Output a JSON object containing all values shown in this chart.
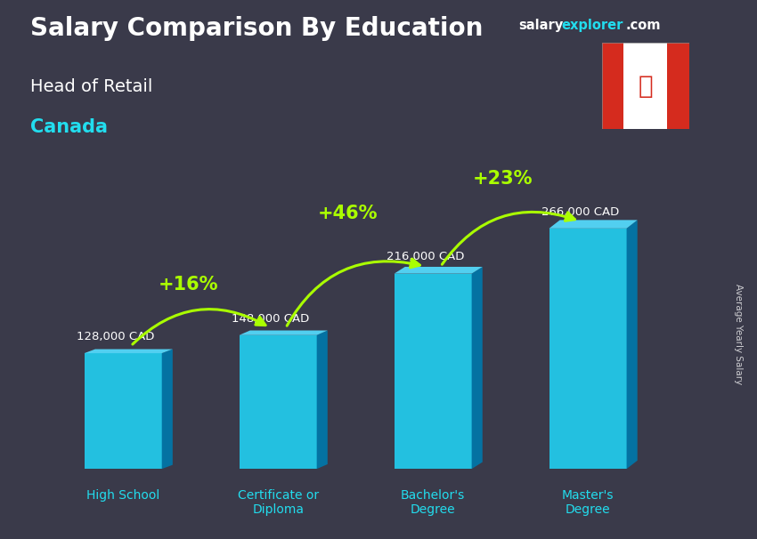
{
  "title_main": "Salary Comparison By Education",
  "title_sub": "Head of Retail",
  "title_country": "Canada",
  "ylabel": "Average Yearly Salary",
  "categories": [
    "High School",
    "Certificate or\nDiploma",
    "Bachelor's\nDegree",
    "Master's\nDegree"
  ],
  "values": [
    128000,
    148000,
    216000,
    266000
  ],
  "labels": [
    "128,000 CAD",
    "148,000 CAD",
    "216,000 CAD",
    "266,000 CAD"
  ],
  "pct_changes": [
    "+16%",
    "+46%",
    "+23%"
  ],
  "bar_color_face": "#22ccee",
  "bar_color_side": "#0077aa",
  "bar_color_top": "#55ddff",
  "bg_color": "#3a3a4a",
  "text_color_white": "#ffffff",
  "text_color_cyan": "#22ddee",
  "text_color_green": "#aaff00",
  "watermark_salary": "salary",
  "watermark_explorer": "explorer",
  "watermark_com": ".com",
  "watermark_color_white": "#ffffff",
  "watermark_color_cyan": "#22ddee",
  "figsize": [
    8.5,
    6.06
  ],
  "dpi": 100
}
